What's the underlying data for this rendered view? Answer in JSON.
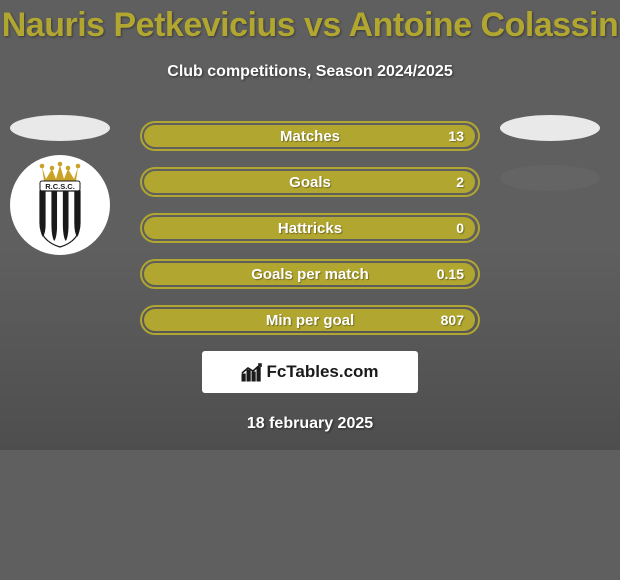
{
  "background_color": "#5f5f5f",
  "shadow_color": "rgba(0,0,0,0.18)",
  "title": {
    "text": "Nauris Petkevicius vs Antoine Colassin",
    "color": "#b1a62f",
    "fontsize": 34,
    "fontweight": 800
  },
  "subtitle": {
    "text": "Club competitions, Season 2024/2025",
    "color": "#ffffff",
    "fontsize": 16
  },
  "left": {
    "ellipse_color": "#e9e9e9",
    "crest_bg": "#ffffff",
    "crest": {
      "crown_color": "#c9a227",
      "text": "R.C.S.C.",
      "text_color": "#1a1a1a",
      "stripes": [
        "#1a1a1a",
        "#ffffff",
        "#1a1a1a",
        "#ffffff",
        "#1a1a1a",
        "#ffffff",
        "#1a1a1a"
      ]
    }
  },
  "right": {
    "ellipse1_color": "#e9e9e9",
    "ellipse2_color": "#646464"
  },
  "bars": {
    "border_color": "#b1a62f",
    "fill_color": "#b1a62f",
    "track_color": "transparent",
    "label_color": "#ffffff",
    "value_color": "#ffffff",
    "items": [
      {
        "label": "Matches",
        "value": "13",
        "fill_pct": 99
      },
      {
        "label": "Goals",
        "value": "2",
        "fill_pct": 99
      },
      {
        "label": "Hattricks",
        "value": "0",
        "fill_pct": 99
      },
      {
        "label": "Goals per match",
        "value": "0.15",
        "fill_pct": 99
      },
      {
        "label": "Min per goal",
        "value": "807",
        "fill_pct": 99
      }
    ]
  },
  "logo": {
    "box_bg": "#ffffff",
    "text": "FcTables.com",
    "text_color": "#1a1a1a",
    "icon_color": "#1a1a1a"
  },
  "date": {
    "text": "18 february 2025",
    "color": "#ffffff"
  }
}
